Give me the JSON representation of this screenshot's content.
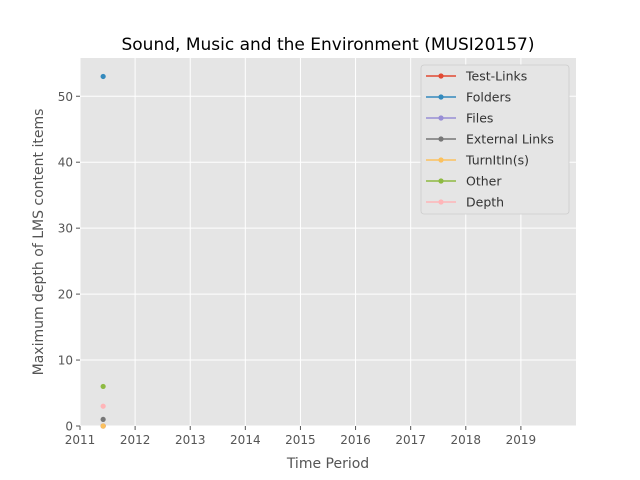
{
  "chart_data": {
    "type": "scatter",
    "title": "Sound, Music and the Environment (MUSI20157)",
    "xlabel": "Time Period",
    "ylabel": "Maximum depth of LMS content items",
    "xlim": [
      2011,
      2020
    ],
    "ylim": [
      0,
      55.8
    ],
    "xticks": [
      2011,
      2012,
      2013,
      2014,
      2015,
      2016,
      2017,
      2018,
      2019
    ],
    "yticks": [
      0,
      10,
      20,
      30,
      40,
      50
    ],
    "grid": true,
    "legend_position": "top-right",
    "series": [
      {
        "name": "Test-Links",
        "color": "#E24A33",
        "points": [
          {
            "x": 2011.42,
            "y": 0
          }
        ]
      },
      {
        "name": "Folders",
        "color": "#348ABD",
        "points": [
          {
            "x": 2011.42,
            "y": 53
          }
        ]
      },
      {
        "name": "Files",
        "color": "#988ED5",
        "points": [
          {
            "x": 2011.42,
            "y": 0
          }
        ]
      },
      {
        "name": "External Links",
        "color": "#777777",
        "points": [
          {
            "x": 2011.42,
            "y": 1
          }
        ]
      },
      {
        "name": "TurnItIn(s)",
        "color": "#FBC15E",
        "points": [
          {
            "x": 2011.42,
            "y": 0
          }
        ]
      },
      {
        "name": "Other",
        "color": "#8EBA42",
        "points": [
          {
            "x": 2011.42,
            "y": 6
          }
        ]
      },
      {
        "name": "Depth",
        "color": "#FFB5B8",
        "points": [
          {
            "x": 2011.42,
            "y": 3
          }
        ]
      }
    ]
  }
}
